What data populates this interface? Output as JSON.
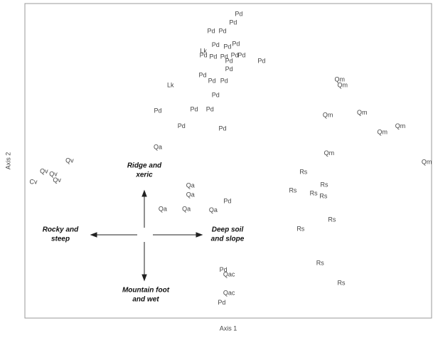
{
  "chart_data": {
    "type": "scatter",
    "xlabel": "Axis 1",
    "ylabel": "Axis 2",
    "xlim": [
      0,
      100
    ],
    "ylim": [
      0,
      100
    ],
    "labels": [
      "Pd",
      "Pd",
      "Pd",
      "Pd",
      "Pd",
      "Pd",
      "Pd",
      "Pd",
      "Pd",
      "Pd",
      "Pd",
      "Pd",
      "Pd",
      "Pd",
      "Pd",
      "Lk",
      "Pd",
      "Pd",
      "Pd",
      "Lk",
      "Pd",
      "Pd",
      "Pd",
      "Pd",
      "Pd",
      "Pd",
      "Qa",
      "Qv",
      "Qv",
      "Qv",
      "Qv",
      "Cv",
      "Qa",
      "Qa",
      "Pd",
      "Qa",
      "Qa",
      "Qa",
      "Qm",
      "Qm",
      "Qm",
      "Qm",
      "Qm",
      "Qm",
      "Qm",
      "Qm",
      "Rs",
      "Rs",
      "Rs",
      "Rs",
      "Rs",
      "Rs",
      "Rs",
      "Rs",
      "Rs",
      "Pd",
      "Qac",
      "Qac",
      "Pd"
    ],
    "x": [
      52.6,
      51.2,
      45.8,
      48.6,
      46.9,
      49.8,
      51.9,
      43.9,
      46.3,
      49.0,
      51.6,
      53.3,
      50.2,
      50.2,
      58.2,
      43.9,
      43.7,
      46.0,
      49.0,
      35.8,
      46.9,
      32.7,
      41.6,
      45.5,
      38.5,
      48.6,
      32.7,
      11.0,
      4.7,
      7.0,
      7.9,
      2.1,
      40.7,
      40.7,
      49.8,
      33.9,
      39.7,
      46.3,
      77.4,
      78.1,
      74.5,
      82.9,
      87.9,
      92.3,
      74.8,
      98.8,
      68.5,
      73.6,
      65.9,
      71.0,
      73.4,
      75.5,
      67.8,
      72.6,
      77.8,
      48.8,
      50.2,
      50.2,
      48.4
    ],
    "y": [
      96.6,
      93.9,
      91.2,
      91.2,
      86.7,
      86.2,
      87.1,
      83.5,
      83.0,
      83.0,
      83.5,
      83.5,
      81.7,
      79.0,
      81.7,
      84.8,
      77.1,
      75.3,
      75.3,
      74.0,
      70.8,
      65.8,
      66.3,
      66.3,
      60.9,
      60.2,
      54.3,
      50.0,
      46.6,
      45.7,
      43.7,
      43.2,
      42.1,
      39.1,
      37.1,
      34.6,
      34.6,
      34.2,
      75.8,
      74.0,
      64.5,
      65.2,
      59.0,
      60.9,
      52.3,
      49.5,
      46.4,
      42.3,
      40.5,
      39.6,
      38.7,
      31.2,
      28.3,
      17.4,
      11.1,
      15.2,
      13.8,
      7.9,
      4.8
    ],
    "annotations": [
      [
        "Ridge and",
        "xeric"
      ],
      [
        "Rocky and",
        "steep"
      ],
      [
        "Deep soil",
        "and slope"
      ],
      [
        "Mountain foot",
        "and wet"
      ]
    ]
  }
}
